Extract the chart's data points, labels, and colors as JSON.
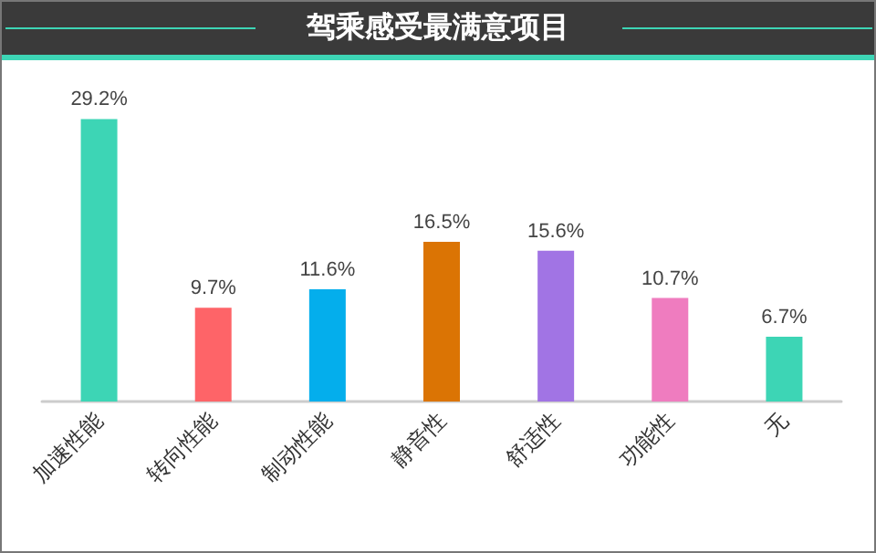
{
  "chart_data": {
    "type": "bar",
    "title": "驾乘感受最满意项目",
    "categories": [
      "加速性能",
      "转向性能",
      "制动性能",
      "静音性",
      "舒适性",
      "功能性",
      "无"
    ],
    "values": [
      29.2,
      9.7,
      11.6,
      16.5,
      15.6,
      10.7,
      6.7
    ],
    "value_labels": [
      "29.2%",
      "9.7%",
      "11.6%",
      "16.5%",
      "15.6%",
      "10.7%",
      "6.7%"
    ],
    "colors": [
      "#3dd5b5",
      "#fe6468",
      "#04aeec",
      "#db7404",
      "#a174e4",
      "#ef7cbf",
      "#3dd5b5"
    ]
  }
}
